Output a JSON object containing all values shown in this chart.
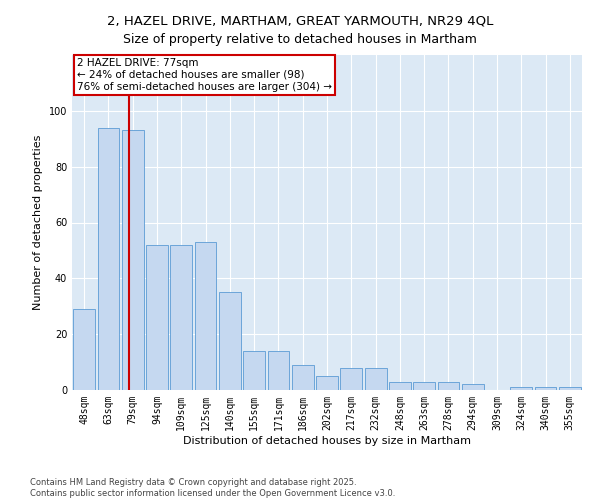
{
  "title": "2, HAZEL DRIVE, MARTHAM, GREAT YARMOUTH, NR29 4QL",
  "subtitle": "Size of property relative to detached houses in Martham",
  "xlabel": "Distribution of detached houses by size in Martham",
  "ylabel": "Number of detached properties",
  "categories": [
    "48sqm",
    "63sqm",
    "79sqm",
    "94sqm",
    "109sqm",
    "125sqm",
    "140sqm",
    "155sqm",
    "171sqm",
    "186sqm",
    "202sqm",
    "217sqm",
    "232sqm",
    "248sqm",
    "263sqm",
    "278sqm",
    "294sqm",
    "309sqm",
    "324sqm",
    "340sqm",
    "355sqm"
  ],
  "values": [
    29,
    94,
    93,
    52,
    52,
    53,
    35,
    14,
    14,
    9,
    5,
    8,
    8,
    3,
    3,
    3,
    2,
    0,
    1,
    1,
    1
  ],
  "bar_color": "#c5d8f0",
  "bar_edge_color": "#5b9bd5",
  "background_color": "#dce9f5",
  "grid_color": "#ffffff",
  "vline_color": "#cc0000",
  "annotation_title": "2 HAZEL DRIVE: 77sqm",
  "annotation_line1": "← 24% of detached houses are smaller (98)",
  "annotation_line2": "76% of semi-detached houses are larger (304) →",
  "annotation_box_facecolor": "#ffffff",
  "annotation_box_edgecolor": "#cc0000",
  "ylim": [
    0,
    120
  ],
  "yticks": [
    0,
    20,
    40,
    60,
    80,
    100
  ],
  "footer": "Contains HM Land Registry data © Crown copyright and database right 2025.\nContains public sector information licensed under the Open Government Licence v3.0.",
  "title_fontsize": 9.5,
  "xlabel_fontsize": 8,
  "ylabel_fontsize": 8,
  "tick_fontsize": 7,
  "footer_fontsize": 6,
  "annot_fontsize": 7.5
}
